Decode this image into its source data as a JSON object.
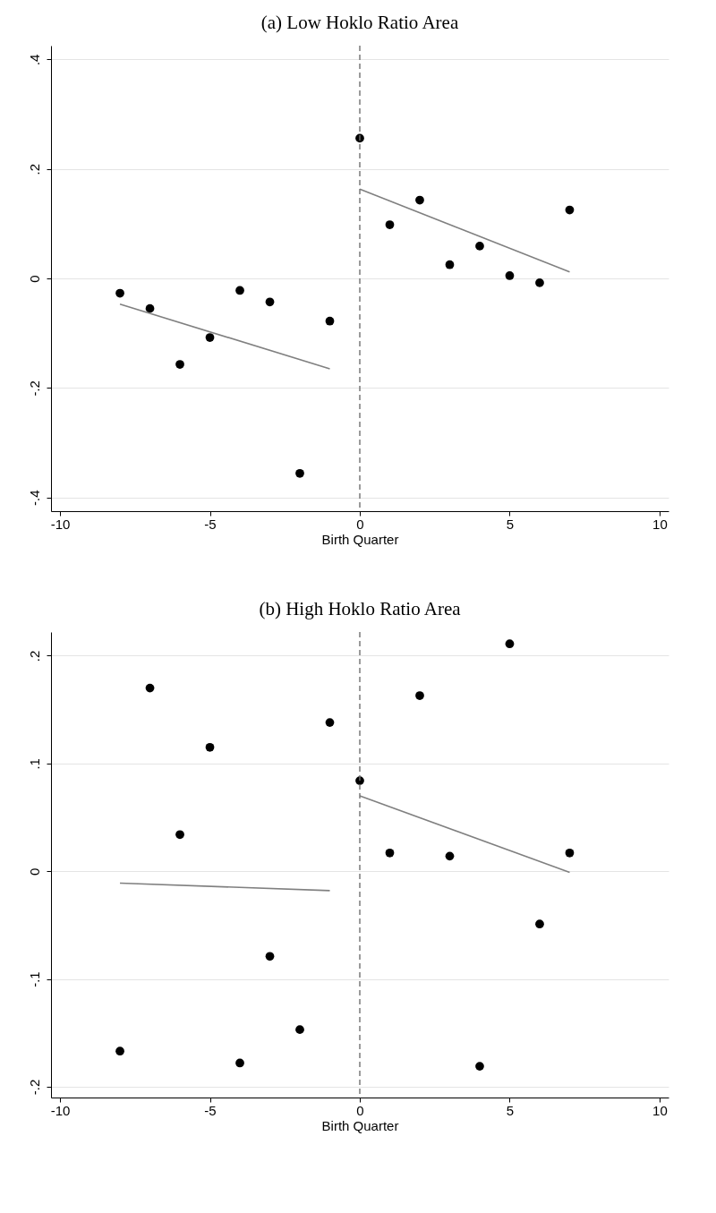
{
  "chart_data": [
    {
      "type": "scatter",
      "title": "(a) Low Hoklo Ratio Area",
      "xlabel": "Birth Quarter",
      "xlim": [
        -10.3,
        10.3
      ],
      "ylim": [
        -0.425,
        0.425
      ],
      "xticks": [
        -10,
        -5,
        0,
        5,
        10
      ],
      "yticks": [
        {
          "value": -0.4,
          "label": "-.4"
        },
        {
          "value": -0.2,
          "label": "-.2"
        },
        {
          "value": 0,
          "label": "0"
        },
        {
          "value": 0.2,
          "label": ".2"
        },
        {
          "value": 0.4,
          "label": ".4"
        }
      ],
      "grid": "y",
      "ref_lines": [
        {
          "axis": "x",
          "value": 0,
          "color": "#707070",
          "line_style": "dashed"
        }
      ],
      "series": [
        {
          "marker": "circle",
          "color": "#000000",
          "x": [
            -8,
            -7,
            -6,
            -5,
            -4,
            -3,
            -2,
            -1,
            0,
            1,
            2,
            3,
            4,
            5,
            6,
            7
          ],
          "values": [
            -0.027,
            -0.055,
            -0.157,
            -0.108,
            -0.022,
            -0.043,
            -0.356,
            -0.078,
            0.256,
            0.098,
            0.143,
            0.025,
            0.059,
            0.005,
            -0.008,
            0.125
          ]
        },
        {
          "type": "line",
          "color": "#808080",
          "x": [
            -8,
            -1
          ],
          "values": [
            -0.047,
            -0.165
          ]
        },
        {
          "type": "line",
          "color": "#808080",
          "x": [
            0,
            7
          ],
          "values": [
            0.163,
            0.012
          ]
        }
      ]
    },
    {
      "type": "scatter",
      "title": "(b) High Hoklo Ratio Area",
      "xlabel": "Birth Quarter",
      "xlim": [
        -10.3,
        10.3
      ],
      "ylim": [
        -0.21,
        0.222
      ],
      "xticks": [
        -10,
        -5,
        0,
        5,
        10
      ],
      "yticks": [
        {
          "value": -0.2,
          "label": "-.2"
        },
        {
          "value": -0.1,
          "label": "-.1"
        },
        {
          "value": 0,
          "label": "0"
        },
        {
          "value": 0.1,
          "label": ".1"
        },
        {
          "value": 0.2,
          "label": ".2"
        }
      ],
      "grid": "y",
      "ref_lines": [
        {
          "axis": "x",
          "value": 0,
          "color": "#707070",
          "line_style": "dashed"
        }
      ],
      "series": [
        {
          "marker": "circle",
          "color": "#000000",
          "x": [
            -8,
            -7,
            -6,
            -5,
            -4,
            -3,
            -2,
            -1,
            0,
            1,
            2,
            3,
            4,
            5,
            6,
            7
          ],
          "values": [
            -0.167,
            0.17,
            0.034,
            0.115,
            -0.178,
            -0.079,
            -0.147,
            0.138,
            0.084,
            0.017,
            0.163,
            0.014,
            -0.181,
            0.211,
            -0.049,
            0.017
          ]
        },
        {
          "type": "line",
          "color": "#808080",
          "x": [
            -8,
            -1
          ],
          "values": [
            -0.011,
            -0.018
          ]
        },
        {
          "type": "line",
          "color": "#808080",
          "x": [
            0,
            7
          ],
          "values": [
            0.07,
            -0.001
          ]
        }
      ]
    }
  ]
}
